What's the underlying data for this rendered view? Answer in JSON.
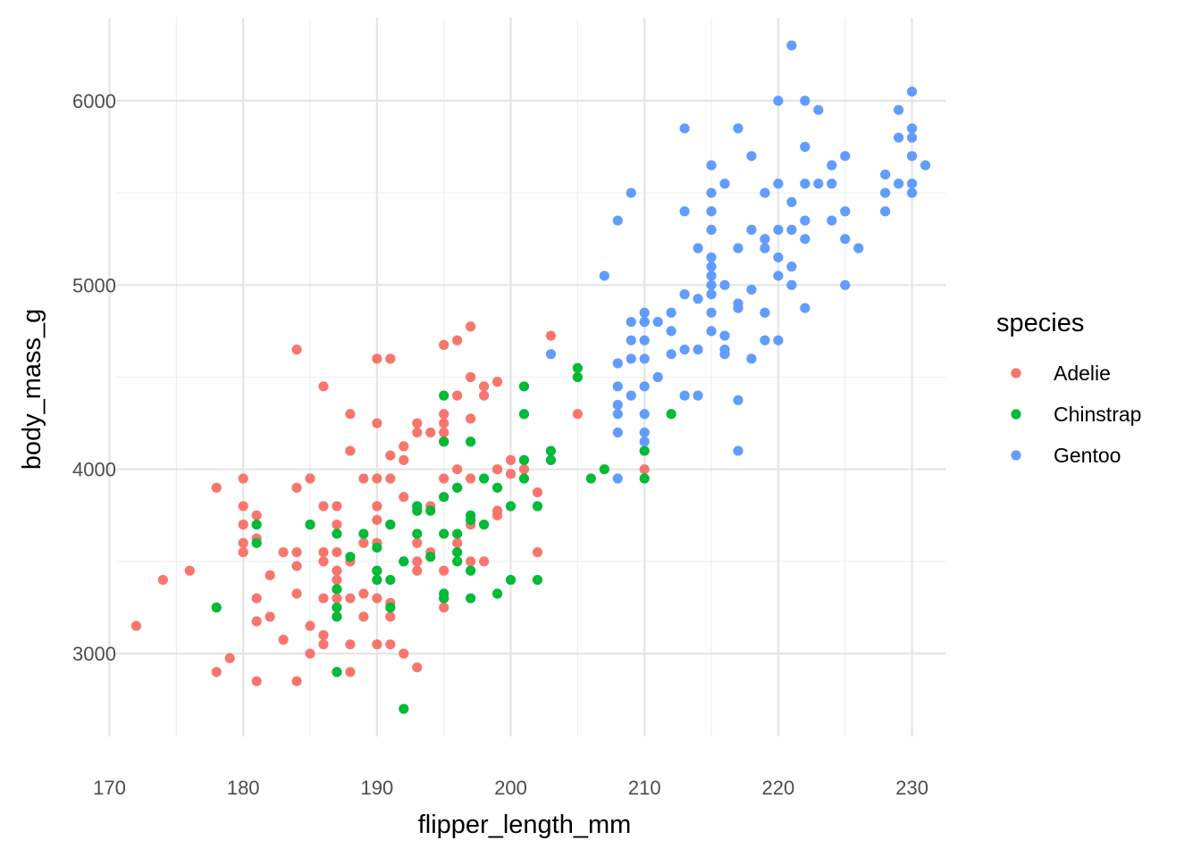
{
  "chart_data": {
    "type": "scatter",
    "xlabel": "flipper_length_mm",
    "ylabel": "body_mass_g",
    "xlim": [
      170.5,
      232.5
    ],
    "ylim": [
      2550,
      6450
    ],
    "x_ticks": [
      170,
      180,
      190,
      200,
      210,
      220,
      230
    ],
    "y_ticks": [
      3000,
      4000,
      5000,
      6000
    ],
    "grid": true,
    "legend": {
      "title": "species",
      "position": "right"
    },
    "series": [
      {
        "name": "Adelie",
        "color": "#F8766D",
        "points": [
          [
            172,
            3150
          ],
          [
            174,
            3400
          ],
          [
            176,
            3450
          ],
          [
            178,
            3900
          ],
          [
            178,
            2900
          ],
          [
            179,
            2975
          ],
          [
            180,
            3950
          ],
          [
            180,
            3800
          ],
          [
            180,
            3700
          ],
          [
            180,
            3600
          ],
          [
            180,
            3550
          ],
          [
            181,
            3750
          ],
          [
            181,
            3625
          ],
          [
            181,
            3300
          ],
          [
            181,
            3175
          ],
          [
            181,
            2850
          ],
          [
            182,
            3425
          ],
          [
            182,
            3200
          ],
          [
            183,
            3550
          ],
          [
            183,
            3075
          ],
          [
            184,
            4650
          ],
          [
            184,
            3900
          ],
          [
            184,
            3550
          ],
          [
            184,
            3475
          ],
          [
            184,
            3325
          ],
          [
            184,
            2850
          ],
          [
            185,
            3950
          ],
          [
            185,
            3700
          ],
          [
            185,
            3150
          ],
          [
            185,
            3000
          ],
          [
            186,
            4450
          ],
          [
            186,
            3800
          ],
          [
            186,
            3550
          ],
          [
            186,
            3500
          ],
          [
            186,
            3300
          ],
          [
            186,
            3100
          ],
          [
            186,
            3050
          ],
          [
            187,
            3800
          ],
          [
            187,
            3700
          ],
          [
            187,
            3550
          ],
          [
            187,
            3450
          ],
          [
            187,
            3400
          ],
          [
            187,
            3300
          ],
          [
            187,
            3200
          ],
          [
            187,
            2900
          ],
          [
            188,
            4300
          ],
          [
            188,
            4100
          ],
          [
            188,
            3500
          ],
          [
            188,
            3300
          ],
          [
            188,
            3050
          ],
          [
            188,
            2900
          ],
          [
            189,
            3950
          ],
          [
            189,
            3600
          ],
          [
            189,
            3325
          ],
          [
            189,
            3200
          ],
          [
            190,
            4600
          ],
          [
            190,
            4250
          ],
          [
            190,
            3950
          ],
          [
            190,
            3800
          ],
          [
            190,
            3725
          ],
          [
            190,
            3600
          ],
          [
            190,
            3450
          ],
          [
            190,
            3300
          ],
          [
            190,
            3050
          ],
          [
            191,
            4600
          ],
          [
            191,
            4075
          ],
          [
            191,
            3950
          ],
          [
            191,
            3700
          ],
          [
            191,
            3275
          ],
          [
            191,
            3200
          ],
          [
            191,
            3050
          ],
          [
            192,
            4125
          ],
          [
            192,
            4050
          ],
          [
            192,
            3850
          ],
          [
            192,
            3500
          ],
          [
            192,
            3000
          ],
          [
            193,
            4250
          ],
          [
            193,
            4200
          ],
          [
            193,
            3775
          ],
          [
            193,
            3600
          ],
          [
            193,
            3500
          ],
          [
            193,
            3450
          ],
          [
            193,
            2925
          ],
          [
            194,
            4200
          ],
          [
            194,
            3800
          ],
          [
            194,
            3550
          ],
          [
            195,
            4675
          ],
          [
            195,
            4300
          ],
          [
            195,
            4250
          ],
          [
            195,
            4200
          ],
          [
            195,
            4150
          ],
          [
            195,
            3950
          ],
          [
            195,
            3850
          ],
          [
            195,
            3450
          ],
          [
            195,
            3300
          ],
          [
            195,
            3250
          ],
          [
            196,
            4700
          ],
          [
            196,
            4400
          ],
          [
            196,
            4000
          ],
          [
            196,
            3900
          ],
          [
            196,
            3600
          ],
          [
            197,
            4775
          ],
          [
            197,
            4500
          ],
          [
            197,
            4275
          ],
          [
            197,
            3950
          ],
          [
            197,
            3700
          ],
          [
            197,
            3500
          ],
          [
            198,
            4450
          ],
          [
            198,
            4400
          ],
          [
            198,
            3500
          ],
          [
            199,
            4475
          ],
          [
            199,
            4000
          ],
          [
            199,
            3775
          ],
          [
            199,
            3750
          ],
          [
            200,
            4050
          ],
          [
            200,
            3975
          ],
          [
            201,
            4000
          ],
          [
            202,
            3550
          ],
          [
            202,
            3875
          ],
          [
            203,
            4725
          ],
          [
            205,
            4300
          ],
          [
            210,
            4000
          ]
        ]
      },
      {
        "name": "Chinstrap",
        "color": "#00BA38",
        "points": [
          [
            178,
            3250
          ],
          [
            181,
            3700
          ],
          [
            181,
            3600
          ],
          [
            185,
            3700
          ],
          [
            187,
            3650
          ],
          [
            187,
            3350
          ],
          [
            187,
            3250
          ],
          [
            187,
            3200
          ],
          [
            187,
            2900
          ],
          [
            188,
            3525
          ],
          [
            189,
            3650
          ],
          [
            190,
            3575
          ],
          [
            190,
            3450
          ],
          [
            190,
            3400
          ],
          [
            191,
            3700
          ],
          [
            191,
            3400
          ],
          [
            191,
            3250
          ],
          [
            192,
            3500
          ],
          [
            192,
            2700
          ],
          [
            193,
            3800
          ],
          [
            193,
            3775
          ],
          [
            193,
            3650
          ],
          [
            194,
            3775
          ],
          [
            194,
            3525
          ],
          [
            195,
            4400
          ],
          [
            195,
            4150
          ],
          [
            195,
            3850
          ],
          [
            195,
            3650
          ],
          [
            195,
            3325
          ],
          [
            195,
            3300
          ],
          [
            196,
            3900
          ],
          [
            196,
            3650
          ],
          [
            196,
            3550
          ],
          [
            196,
            3500
          ],
          [
            197,
            4150
          ],
          [
            197,
            3750
          ],
          [
            197,
            3725
          ],
          [
            197,
            3450
          ],
          [
            197,
            3300
          ],
          [
            198,
            3950
          ],
          [
            198,
            3700
          ],
          [
            199,
            3900
          ],
          [
            199,
            3325
          ],
          [
            200,
            3800
          ],
          [
            200,
            3400
          ],
          [
            201,
            4450
          ],
          [
            201,
            4300
          ],
          [
            201,
            4050
          ],
          [
            201,
            3950
          ],
          [
            202,
            3800
          ],
          [
            202,
            3400
          ],
          [
            203,
            4100
          ],
          [
            203,
            4050
          ],
          [
            205,
            4550
          ],
          [
            205,
            4500
          ],
          [
            206,
            3950
          ],
          [
            207,
            4000
          ],
          [
            210,
            4800
          ],
          [
            210,
            4100
          ],
          [
            210,
            3950
          ],
          [
            212,
            4300
          ]
        ]
      },
      {
        "name": "Gentoo",
        "color": "#619CFF",
        "points": [
          [
            203,
            4625
          ],
          [
            207,
            5050
          ],
          [
            208,
            5350
          ],
          [
            208,
            4575
          ],
          [
            208,
            4450
          ],
          [
            208,
            4350
          ],
          [
            208,
            4300
          ],
          [
            208,
            4200
          ],
          [
            208,
            3950
          ],
          [
            209,
            5500
          ],
          [
            209,
            4800
          ],
          [
            209,
            4700
          ],
          [
            209,
            4600
          ],
          [
            209,
            4400
          ],
          [
            210,
            4850
          ],
          [
            210,
            4800
          ],
          [
            210,
            4700
          ],
          [
            210,
            4600
          ],
          [
            210,
            4450
          ],
          [
            210,
            4300
          ],
          [
            210,
            4200
          ],
          [
            210,
            4150
          ],
          [
            211,
            4800
          ],
          [
            211,
            4500
          ],
          [
            212,
            4850
          ],
          [
            212,
            4750
          ],
          [
            212,
            4625
          ],
          [
            213,
            5850
          ],
          [
            213,
            5400
          ],
          [
            213,
            4950
          ],
          [
            213,
            4650
          ],
          [
            213,
            4400
          ],
          [
            214,
            5200
          ],
          [
            214,
            4925
          ],
          [
            214,
            4650
          ],
          [
            214,
            4400
          ],
          [
            215,
            5650
          ],
          [
            215,
            5500
          ],
          [
            215,
            5400
          ],
          [
            215,
            5300
          ],
          [
            215,
            5150
          ],
          [
            215,
            5100
          ],
          [
            215,
            5050
          ],
          [
            215,
            5000
          ],
          [
            215,
            4950
          ],
          [
            215,
            4850
          ],
          [
            215,
            4750
          ],
          [
            216,
            5550
          ],
          [
            216,
            5000
          ],
          [
            216,
            4725
          ],
          [
            216,
            4650
          ],
          [
            216,
            4625
          ],
          [
            217,
            5850
          ],
          [
            217,
            5200
          ],
          [
            217,
            4900
          ],
          [
            217,
            4875
          ],
          [
            217,
            4375
          ],
          [
            217,
            4100
          ],
          [
            218,
            5700
          ],
          [
            218,
            5300
          ],
          [
            218,
            4975
          ],
          [
            218,
            4600
          ],
          [
            219,
            5500
          ],
          [
            219,
            5250
          ],
          [
            219,
            5200
          ],
          [
            219,
            4850
          ],
          [
            219,
            4700
          ],
          [
            220,
            6000
          ],
          [
            220,
            5550
          ],
          [
            220,
            5300
          ],
          [
            220,
            5150
          ],
          [
            220,
            5050
          ],
          [
            220,
            4700
          ],
          [
            221,
            6300
          ],
          [
            221,
            5450
          ],
          [
            221,
            5300
          ],
          [
            221,
            5100
          ],
          [
            221,
            5000
          ],
          [
            222,
            6000
          ],
          [
            222,
            5750
          ],
          [
            222,
            5550
          ],
          [
            222,
            5350
          ],
          [
            222,
            5250
          ],
          [
            222,
            4875
          ],
          [
            223,
            5950
          ],
          [
            223,
            5550
          ],
          [
            224,
            5550
          ],
          [
            224,
            5650
          ],
          [
            224,
            5350
          ],
          [
            225,
            5700
          ],
          [
            225,
            5400
          ],
          [
            225,
            5250
          ],
          [
            225,
            5000
          ],
          [
            226,
            5200
          ],
          [
            228,
            5600
          ],
          [
            228,
            5500
          ],
          [
            228,
            5400
          ],
          [
            229,
            5950
          ],
          [
            229,
            5800
          ],
          [
            229,
            5550
          ],
          [
            230,
            6050
          ],
          [
            230,
            5850
          ],
          [
            230,
            5800
          ],
          [
            230,
            5700
          ],
          [
            230,
            5550
          ],
          [
            230,
            5500
          ],
          [
            231,
            5650
          ]
        ]
      }
    ]
  }
}
